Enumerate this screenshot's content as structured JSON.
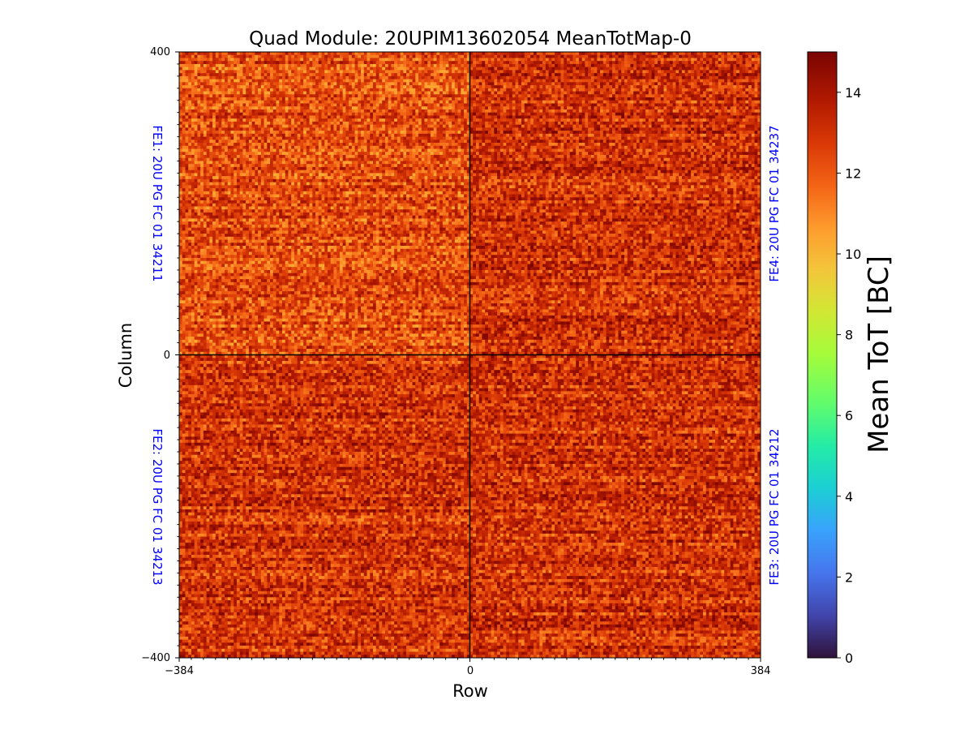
{
  "chart_data": {
    "type": "heatmap",
    "title": "Quad Module: 20UPIM13602054 MeanTotMap-0",
    "xlabel": "Row",
    "ylabel": "Column",
    "xlim": [
      -384,
      384
    ],
    "ylim": [
      -400,
      400
    ],
    "xticks": [
      "−384",
      "0",
      "384"
    ],
    "yticks": [
      "400",
      "0",
      "−400"
    ],
    "colorbar": {
      "label": "Mean ToT [BC]",
      "range": [
        0,
        15
      ],
      "ticks": [
        "0",
        "2",
        "4",
        "6",
        "8",
        "10",
        "12",
        "14"
      ],
      "colormap": "turbo"
    },
    "quadrants": [
      {
        "name": "FE1: 20U PG FC 01 34211",
        "x_range": [
          -384,
          0
        ],
        "y_range": [
          0,
          400
        ],
        "mean_tot": 12.3
      },
      {
        "name": "FE4: 20U PG FC 01 34237",
        "x_range": [
          0,
          384
        ],
        "y_range": [
          0,
          400
        ],
        "mean_tot": 13.0
      },
      {
        "name": "FE2: 20U PG FC 01 34213",
        "x_range": [
          -384,
          0
        ],
        "y_range": [
          -400,
          0
        ],
        "mean_tot": 12.9
      },
      {
        "name": "FE3: 20U PG FC 01 34212",
        "x_range": [
          0,
          384
        ],
        "y_range": [
          -400,
          0
        ],
        "mean_tot": 13.0
      }
    ]
  }
}
